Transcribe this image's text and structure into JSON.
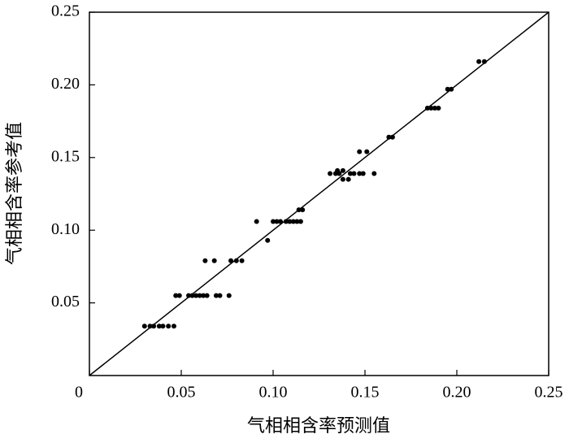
{
  "chart_data": {
    "type": "scatter",
    "xlabel": "气相相含率预测值",
    "ylabel": "气相相含率参考值",
    "color": "#000000",
    "x": [
      0.03,
      0.033,
      0.035,
      0.038,
      0.04,
      0.043,
      0.046,
      0.047,
      0.049,
      0.054,
      0.056,
      0.058,
      0.06,
      0.062,
      0.064,
      0.069,
      0.071,
      0.076,
      0.063,
      0.068,
      0.077,
      0.08,
      0.083,
      0.097,
      0.091,
      0.1,
      0.102,
      0.104,
      0.107,
      0.109,
      0.111,
      0.113,
      0.115,
      0.114,
      0.116,
      0.131,
      0.134,
      0.136,
      0.142,
      0.144,
      0.147,
      0.149,
      0.155,
      0.135,
      0.138,
      0.138,
      0.141,
      0.147,
      0.151,
      0.163,
      0.165,
      0.184,
      0.186,
      0.188,
      0.19,
      0.195,
      0.197,
      0.212,
      0.215
    ],
    "values": [
      0.034,
      0.034,
      0.034,
      0.034,
      0.034,
      0.034,
      0.034,
      0.055,
      0.055,
      0.055,
      0.055,
      0.055,
      0.055,
      0.055,
      0.055,
      0.055,
      0.055,
      0.055,
      0.079,
      0.079,
      0.079,
      0.079,
      0.079,
      0.093,
      0.106,
      0.106,
      0.106,
      0.106,
      0.106,
      0.106,
      0.106,
      0.106,
      0.106,
      0.114,
      0.114,
      0.139,
      0.139,
      0.139,
      0.139,
      0.139,
      0.139,
      0.139,
      0.139,
      0.141,
      0.141,
      0.135,
      0.135,
      0.154,
      0.154,
      0.164,
      0.164,
      0.184,
      0.184,
      0.184,
      0.184,
      0.197,
      0.197,
      0.216,
      0.216
    ],
    "xlim": [
      0,
      0.25
    ],
    "ylim": [
      0,
      0.25
    ],
    "xticks": [
      0,
      0.05,
      {
        "value": 0.1,
        "label": "0.10"
      },
      0.15,
      {
        "value": 0.2,
        "label": "0.20"
      },
      0.25
    ],
    "yticks": [
      0.05,
      {
        "value": 0.1,
        "label": "0.10"
      },
      0.15,
      {
        "value": 0.2,
        "label": "0.20"
      },
      0.25
    ],
    "reference_line": true
  }
}
